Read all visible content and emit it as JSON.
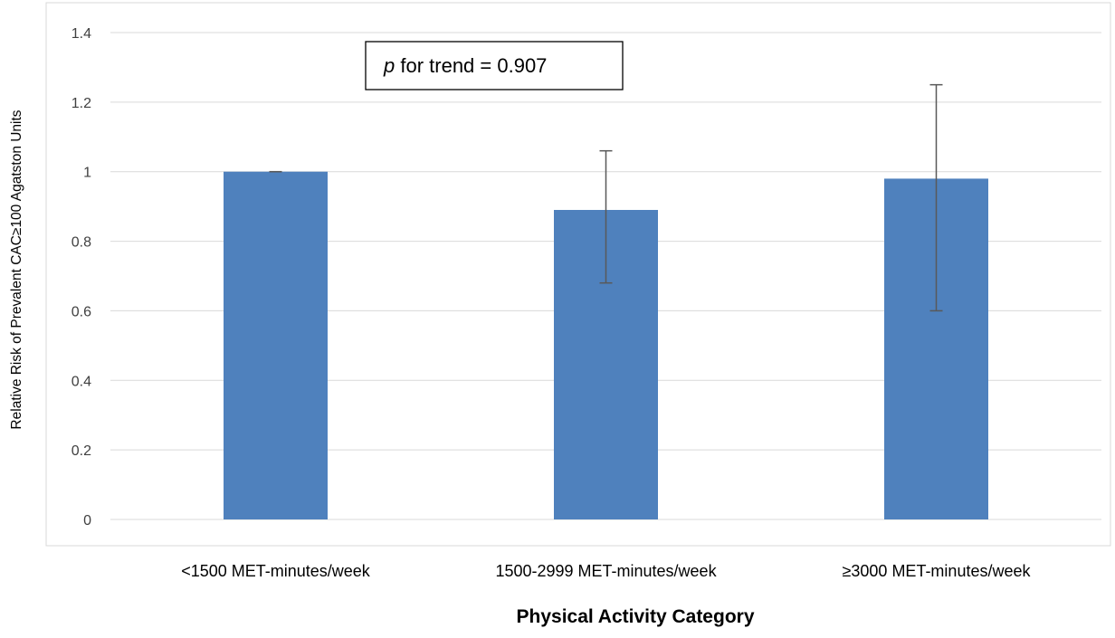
{
  "chart_data": {
    "type": "bar",
    "categories": [
      "<1500 MET-minutes/week",
      "1500-2999 MET-minutes/week",
      "≥3000 MET-minutes/week"
    ],
    "values": [
      1.0,
      0.89,
      0.98
    ],
    "error_bars": [
      {
        "lower": 1.0,
        "upper": 1.0
      },
      {
        "lower": 0.68,
        "upper": 1.06
      },
      {
        "lower": 0.6,
        "upper": 1.25
      }
    ],
    "xlabel": "Physical Activity Category",
    "ylabel": "Relative Risk of Prevalent CAC≥100 Agatston Units",
    "ylim": [
      0,
      1.4
    ],
    "yticks": [
      0,
      0.2,
      0.4,
      0.6,
      0.8,
      1,
      1.2,
      1.4
    ],
    "ytick_labels": [
      "0",
      "0.2",
      "0.4",
      "0.6",
      "0.8",
      "1",
      "1.2",
      "1.4"
    ],
    "grid": true,
    "annotation": {
      "italic_part": "p",
      "rest": " for trend = 0.907"
    },
    "colors": {
      "bar": "#4f81bd",
      "error_bar": "#595959",
      "grid": "#d9d9d9",
      "frame": "#d9d9d9",
      "text": "#000000"
    }
  }
}
